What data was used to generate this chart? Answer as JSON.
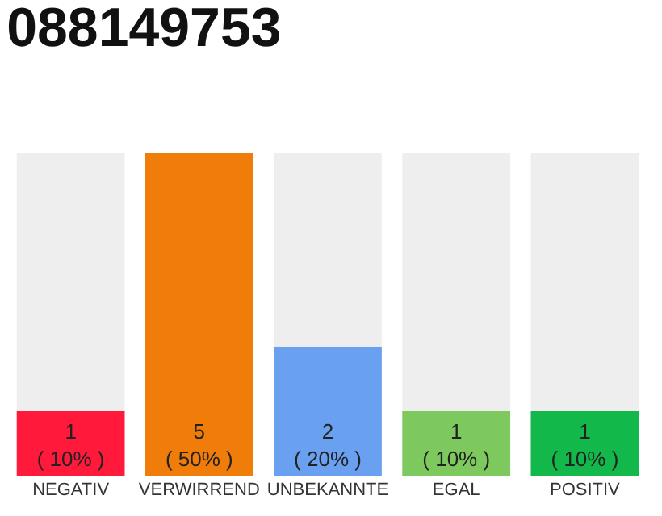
{
  "chart_data": {
    "type": "bar",
    "title": "088149753",
    "categories": [
      "NEGATIV",
      "VERWIRREND",
      "UNBEKANNTE",
      "EGAL",
      "POSITIV"
    ],
    "values": [
      1,
      5,
      2,
      1,
      1
    ],
    "colors": [
      "#ff1a3c",
      "#f07c0a",
      "#6aa0f0",
      "#7dc95e",
      "#12b84a"
    ],
    "value_labels": [
      "1\n( 10% )",
      "5\n( 50% )",
      "2\n( 20% )",
      "1\n( 10% )",
      "1\n( 10% )"
    ],
    "ylim": [
      0,
      5
    ],
    "grid": false,
    "legend": false
  }
}
